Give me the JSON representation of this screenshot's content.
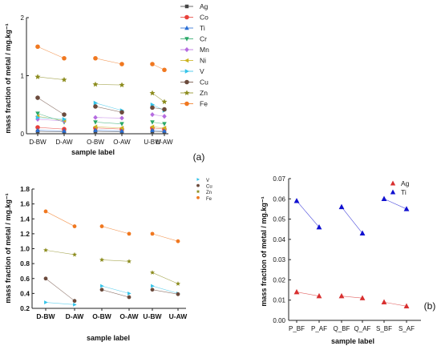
{
  "panel_labels": {
    "a": "(a)",
    "b": "(b)"
  },
  "colors": {
    "Ag": "#444444",
    "Co": "#e8403a",
    "Ti": "#2a6fd6",
    "Cr": "#2aa868",
    "Mn": "#b56ce0",
    "Ni": "#cbb21e",
    "V": "#34c3e8",
    "Cu": "#6b4a3c",
    "Zn": "#8c8c1e",
    "Fe": "#f07820",
    "Ag_b": "#d83030",
    "Ti_b": "#1010d0"
  },
  "chart_data": [
    {
      "id": "a",
      "type": "scatter",
      "connect": "pairs",
      "title": "",
      "xlabel": "sample label",
      "ylabel": "mass fraction of metal / mg.kg⁻¹",
      "categories": [
        "D-BW",
        "D-AW",
        "O-BW",
        "O-AW",
        "U-BW",
        "U-AW"
      ],
      "ylim": [
        0,
        2
      ],
      "yticks": [
        "0",
        "1",
        "2"
      ],
      "legend_position": "right",
      "series": [
        {
          "name": "Ag",
          "marker": "square",
          "values": [
            0.04,
            0.03,
            0.04,
            0.03,
            0.04,
            0.03
          ]
        },
        {
          "name": "Co",
          "marker": "circle",
          "values": [
            0.11,
            0.08,
            0.1,
            0.08,
            0.1,
            0.08
          ]
        },
        {
          "name": "Ti",
          "marker": "triangle-up",
          "values": [
            0.06,
            0.05,
            0.06,
            0.05,
            0.06,
            0.05
          ]
        },
        {
          "name": "Cr",
          "marker": "triangle-down",
          "values": [
            0.35,
            0.2,
            0.2,
            0.17,
            0.2,
            0.17
          ]
        },
        {
          "name": "Mn",
          "marker": "diamond",
          "values": [
            0.25,
            0.22,
            0.28,
            0.27,
            0.33,
            0.3
          ]
        },
        {
          "name": "Ni",
          "marker": "triangle-left",
          "values": [
            0.3,
            0.23,
            0.12,
            0.1,
            0.12,
            0.1
          ]
        },
        {
          "name": "V",
          "marker": "triangle-right",
          "values": [
            0.28,
            0.25,
            0.53,
            0.4,
            0.5,
            0.4
          ]
        },
        {
          "name": "Cu",
          "marker": "circle",
          "values": [
            0.62,
            0.33,
            0.47,
            0.37,
            0.45,
            0.42
          ]
        },
        {
          "name": "Zn",
          "marker": "star",
          "values": [
            0.98,
            0.93,
            0.85,
            0.84,
            0.7,
            0.55
          ]
        },
        {
          "name": "Fe",
          "marker": "circle",
          "values": [
            1.5,
            1.3,
            1.3,
            1.2,
            1.2,
            1.1
          ]
        }
      ]
    },
    {
      "id": "c",
      "type": "scatter",
      "connect": "pairs",
      "title": "",
      "xlabel": "sample label",
      "ylabel": "mass fraction of metal / mg.kg⁻¹",
      "categories": [
        "D-BW",
        "D-AW",
        "O-BW",
        "O-AW",
        "U-BW",
        "U-AW"
      ],
      "ylim": [
        0.2,
        1.8
      ],
      "yticks": [
        "0.2",
        "0.4",
        "0.6",
        "0.8",
        "1.0",
        "1.2",
        "1.4",
        "1.6",
        "1.8"
      ],
      "legend_position": "top-right",
      "series": [
        {
          "name": "V",
          "marker": "triangle-right",
          "values": [
            0.28,
            0.25,
            0.5,
            0.4,
            0.5,
            0.4
          ]
        },
        {
          "name": "Cu",
          "marker": "circle",
          "values": [
            0.6,
            0.3,
            0.45,
            0.35,
            0.45,
            0.39
          ]
        },
        {
          "name": "Zn",
          "marker": "star",
          "values": [
            0.98,
            0.92,
            0.85,
            0.83,
            0.68,
            0.53
          ]
        },
        {
          "name": "Fe",
          "marker": "circle",
          "values": [
            1.5,
            1.3,
            1.3,
            1.2,
            1.2,
            1.1
          ]
        }
      ]
    },
    {
      "id": "b",
      "type": "scatter",
      "connect": "pairs",
      "title": "",
      "xlabel": "sample label",
      "ylabel": "mass fraction of metal / mg.kg⁻¹",
      "categories": [
        "P_BF",
        "P_AF",
        "Q_BF",
        "Q_AF",
        "S_BF",
        "S_AF"
      ],
      "ylim": [
        0.0,
        0.07
      ],
      "yticks": [
        "0.00",
        "0.01",
        "0.02",
        "0.03",
        "0.04",
        "0.05",
        "0.06",
        "0.07"
      ],
      "legend_position": "top-right",
      "series": [
        {
          "name": "Ag",
          "marker": "triangle-up",
          "values": [
            0.014,
            0.012,
            0.012,
            0.011,
            0.009,
            0.007
          ]
        },
        {
          "name": "Ti",
          "marker": "triangle-up",
          "values": [
            0.059,
            0.046,
            0.056,
            0.043,
            0.06,
            0.055
          ]
        }
      ]
    }
  ]
}
